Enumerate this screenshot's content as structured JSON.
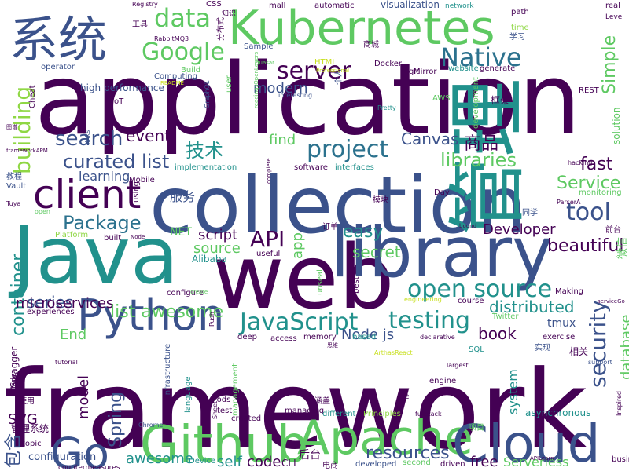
{
  "palette": {
    "dark_purple": "#440154",
    "indigo": "#3b528b",
    "teal": "#21918c",
    "green": "#5ec962",
    "yellow": "#c8e020",
    "blue": "#2c728e",
    "light_green": "#8fd744"
  },
  "words": [
    {
      "text": "framework",
      "color": "#440154"
    },
    {
      "text": "application",
      "color": "#440154"
    },
    {
      "text": "collection",
      "color": "#3b528b"
    },
    {
      "text": "web",
      "color": "#440154"
    },
    {
      "text": "Java",
      "color": "#21918c"
    },
    {
      "text": "library",
      "color": "#3b528b"
    },
    {
      "text": "系统",
      "color": "#3b528b"
    },
    {
      "text": "管理",
      "color": "#21918c"
    },
    {
      "text": "Kubernetes",
      "color": "#5ec962"
    },
    {
      "text": "Github",
      "color": "#5ec962"
    },
    {
      "text": "Apache",
      "color": "#5ec962"
    },
    {
      "text": "Cloud",
      "color": "#3b528b"
    },
    {
      "text": "Python",
      "color": "#3b528b"
    },
    {
      "text": "Go",
      "color": "#3b528b"
    },
    {
      "text": "client",
      "color": "#440154"
    },
    {
      "text": "Google",
      "color": "#5ec962"
    },
    {
      "text": "data",
      "color": "#5ec962"
    },
    {
      "text": "server",
      "color": "#440154"
    },
    {
      "text": "Native",
      "color": "#2c728e"
    },
    {
      "text": "project",
      "color": "#2c728e"
    },
    {
      "text": "open source",
      "color": "#21918c"
    },
    {
      "text": "JavaScript",
      "color": "#21918c"
    },
    {
      "text": "testing",
      "color": "#21918c"
    },
    {
      "text": "security",
      "color": "#3b528b"
    },
    {
      "text": "building",
      "color": "#8fd744"
    },
    {
      "text": "search",
      "color": "#3b528b"
    },
    {
      "text": "curated list",
      "color": "#3b528b"
    },
    {
      "text": "Package",
      "color": "#2c728e"
    },
    {
      "text": "tool",
      "color": "#3b528b"
    },
    {
      "text": "API",
      "color": "#440154"
    },
    {
      "text": "libraries",
      "color": "#5ec962"
    },
    {
      "text": "container",
      "color": "#21918c"
    },
    {
      "text": "Service",
      "color": "#5ec962"
    },
    {
      "text": "resources",
      "color": "#3b528b"
    },
    {
      "text": "list awesome",
      "color": "#5ec962"
    },
    {
      "text": "Spring",
      "color": "#3b528b"
    },
    {
      "text": "Simple",
      "color": "#5ec962"
    },
    {
      "text": "fast",
      "color": "#440154"
    },
    {
      "text": "beautiful",
      "color": "#440154"
    },
    {
      "text": "event",
      "color": "#440154"
    },
    {
      "text": "Canvas",
      "color": "#3b528b"
    },
    {
      "text": "商品",
      "color": "#440154"
    },
    {
      "text": "技术",
      "color": "#21918c"
    },
    {
      "text": "easy",
      "color": "#21918c"
    },
    {
      "text": "secret",
      "color": "#5ec962"
    },
    {
      "text": "distributed",
      "color": "#21918c"
    },
    {
      "text": "book",
      "color": "#440154"
    },
    {
      "text": "database",
      "color": "#5ec962"
    },
    {
      "text": "model",
      "color": "#440154"
    },
    {
      "text": "system",
      "color": "#21918c"
    },
    {
      "text": "series",
      "color": "#3b528b"
    },
    {
      "text": "script",
      "color": "#440154"
    },
    {
      "text": "source",
      "color": "#5ec962"
    },
    {
      "text": "find",
      "color": "#5ec962"
    },
    {
      "text": "learning",
      "color": "#3b528b"
    },
    {
      "text": "awesome",
      "color": "#21918c"
    },
    {
      "text": "self",
      "color": "#21918c"
    },
    {
      "text": "code",
      "color": "#440154"
    },
    {
      "text": "free",
      "color": "#440154"
    },
    {
      "text": "Developer",
      "color": "#440154"
    },
    {
      "text": "Node js",
      "color": "#3b528b"
    },
    {
      "text": "modern",
      "color": "#3b528b"
    },
    {
      "text": "End",
      "color": "#5ec962"
    },
    {
      "text": "SVG",
      "color": "#440154"
    },
    {
      "text": "app",
      "color": "#5ec962"
    },
    {
      "text": "tmux",
      "color": "#3b528b"
    },
    {
      "text": "Serverless",
      "color": "#5ec962"
    },
    {
      "text": "microservices",
      "color": "#440154"
    },
    {
      "text": "服务",
      "color": "#3b528b"
    },
    {
      "text": "包含",
      "color": "#3b528b"
    },
    {
      "text": "CLI",
      "color": "#440154"
    },
    {
      "text": "后台",
      "color": "#440154"
    },
    {
      "text": "微信",
      "color": "#5ec962"
    },
    {
      "text": "configuration",
      "color": "#3b528b"
    },
    {
      "text": "high performance",
      "color": "#3b528b"
    },
    {
      "text": "visualization",
      "color": "#3b528b"
    },
    {
      "text": "automatic",
      "color": "#440154"
    },
    {
      "text": "mall",
      "color": "#440154"
    },
    {
      "text": "network",
      "color": "#21918c"
    },
    {
      "text": "path",
      "color": "#440154"
    },
    {
      "text": "real",
      "color": "#440154"
    },
    {
      "text": "time",
      "color": "#8fd744"
    },
    {
      "text": "Level",
      "color": "#440154"
    },
    {
      "text": "学习",
      "color": "#3b528b"
    },
    {
      "text": "Sample",
      "color": "#3b528b"
    },
    {
      "text": "Computing",
      "color": "#3b528b"
    },
    {
      "text": "商城",
      "color": "#440154"
    },
    {
      "text": "Docker",
      "color": "#440154"
    },
    {
      "text": "Mirror",
      "color": "#440154"
    },
    {
      "text": "website",
      "color": "#21918c"
    },
    {
      "text": "generate",
      "color": "#440154"
    },
    {
      "text": "git",
      "color": "#440154"
    },
    {
      "text": "Build",
      "color": "#5ec962"
    },
    {
      "text": "operator",
      "color": "#3b528b"
    },
    {
      "text": "interesting",
      "color": "#3b528b"
    },
    {
      "text": "AWS",
      "color": "#5ec962"
    },
    {
      "text": "REST",
      "color": "#440154"
    },
    {
      "text": "框架",
      "color": "#440154"
    },
    {
      "text": "Mobile",
      "color": "#440154"
    },
    {
      "text": "implementation",
      "color": "#21918c"
    },
    {
      "text": "software",
      "color": "#440154"
    },
    {
      "text": "interfaces",
      "color": "#21918c"
    },
    {
      "text": "Vault",
      "color": "#3b528b"
    },
    {
      "text": "教程",
      "color": "#3b528b"
    },
    {
      "text": "NET",
      "color": "#5ec962"
    },
    {
      "text": "Alibaba",
      "color": "#21918c"
    },
    {
      "text": "useful",
      "color": "#440154"
    },
    {
      "text": "unseal",
      "color": "#5ec962"
    },
    {
      "text": "configure",
      "color": "#440154"
    },
    {
      "text": "experiences",
      "color": "#440154"
    },
    {
      "text": "deep",
      "color": "#440154"
    },
    {
      "text": "access",
      "color": "#440154"
    },
    {
      "text": "memory",
      "color": "#440154"
    },
    {
      "text": "based",
      "color": "#21918c"
    },
    {
      "text": "declarative",
      "color": "#440154"
    },
    {
      "text": "exercise",
      "color": "#440154"
    },
    {
      "text": "实现",
      "color": "#3b528b"
    },
    {
      "text": "course",
      "color": "#440154"
    },
    {
      "text": "Making",
      "color": "#440154"
    },
    {
      "text": "Twitter",
      "color": "#5ec962"
    },
    {
      "text": "monitoring",
      "color": "#5ec962"
    },
    {
      "text": "前台",
      "color": "#440154"
    },
    {
      "text": "同学",
      "color": "#3b528b"
    },
    {
      "text": "Platform",
      "color": "#8fd744"
    },
    {
      "text": "built",
      "color": "#440154"
    },
    {
      "text": "Swagger",
      "color": "#440154"
    },
    {
      "text": "模块",
      "color": "#440154"
    },
    {
      "text": "订单",
      "color": "#440154"
    },
    {
      "text": "hacking",
      "color": "#440154"
    },
    {
      "text": "Tuya",
      "color": "#440154"
    },
    {
      "text": "tutorial",
      "color": "#440154"
    },
    {
      "text": "使用",
      "color": "#440154"
    },
    {
      "text": "管理系统",
      "color": "#440154"
    },
    {
      "text": "topic",
      "color": "#440154"
    },
    {
      "text": "countermeasures",
      "color": "#440154"
    },
    {
      "text": "Device",
      "color": "#21918c"
    },
    {
      "text": "infrastructure",
      "color": "#3b528b"
    },
    {
      "text": "language",
      "color": "#21918c"
    },
    {
      "text": "test",
      "color": "#440154"
    },
    {
      "text": "management",
      "color": "#5ec962"
    },
    {
      "text": "managing",
      "color": "#440154"
    },
    {
      "text": "created",
      "color": "#440154"
    },
    {
      "text": "different",
      "color": "#21918c"
    },
    {
      "text": "Principles",
      "color": "#8fd744"
    },
    {
      "text": "fullstack",
      "color": "#440154"
    },
    {
      "text": "asynchronous",
      "color": "#21918c"
    },
    {
      "text": "engine",
      "color": "#440154"
    },
    {
      "text": "largest",
      "color": "#440154"
    },
    {
      "text": "SQL",
      "color": "#21918c"
    },
    {
      "text": "相关",
      "color": "#440154"
    },
    {
      "text": "support",
      "color": "#3b528b"
    },
    {
      "text": "项目",
      "color": "#5ec962"
    },
    {
      "text": "business",
      "color": "#440154"
    },
    {
      "text": "developed",
      "color": "#3b528b"
    },
    {
      "text": "second",
      "color": "#5ec962"
    },
    {
      "text": "driven",
      "color": "#440154"
    },
    {
      "text": "电商",
      "color": "#440154"
    },
    {
      "text": "Chrome",
      "color": "#3b528b"
    },
    {
      "text": "Made",
      "color": "#440154"
    },
    {
      "text": "de",
      "color": "#440154"
    },
    {
      "text": "涵盖",
      "color": "#440154"
    },
    {
      "text": "工具",
      "color": "#440154"
    },
    {
      "text": "分布式",
      "color": "#440154"
    },
    {
      "text": "Registry",
      "color": "#440154"
    },
    {
      "text": "CSS",
      "color": "#440154"
    },
    {
      "text": "HTML",
      "color": "#c8e020"
    },
    {
      "text": "user",
      "color": "#5ec962"
    },
    {
      "text": "IoT",
      "color": "#440154"
    },
    {
      "text": "Cheat",
      "color": "#440154"
    },
    {
      "text": "GraphQL",
      "color": "#3b528b"
    },
    {
      "text": "个人",
      "color": "#3b528b"
    },
    {
      "text": "Pretty",
      "color": "#21918c"
    },
    {
      "text": "development",
      "color": "#5ec962"
    },
    {
      "text": "solution",
      "color": "#5ec962"
    },
    {
      "text": "Day",
      "color": "#440154"
    },
    {
      "text": "ParserA",
      "color": "#440154"
    },
    {
      "text": "Pods",
      "color": "#440154"
    },
    {
      "text": "open",
      "color": "#5ec962"
    },
    {
      "text": "best",
      "color": "#440154"
    },
    {
      "text": "Push",
      "color": "#440154"
    },
    {
      "text": "Node",
      "color": "#440154"
    },
    {
      "text": "using",
      "color": "#440154"
    },
    {
      "text": "complete",
      "color": "#440154"
    },
    {
      "text": "bound",
      "color": "#440154"
    },
    {
      "text": "create",
      "color": "#5ec962"
    },
    {
      "text": "Sheet",
      "color": "#440154"
    },
    {
      "text": "Inspired",
      "color": "#440154"
    },
    {
      "text": "serviceGo",
      "color": "#440154"
    },
    {
      "text": "APILearn",
      "color": "#440154"
    },
    {
      "text": "engineering",
      "color": "#c8e020"
    },
    {
      "text": "思维",
      "color": "#440154"
    },
    {
      "text": "ArthasReact",
      "color": "#c8e020"
    },
    {
      "text": "RabbitMQ3",
      "color": "#440154"
    },
    {
      "text": "frameworkAPM",
      "color": "#440154"
    },
    {
      "text": "图谱",
      "color": "#440154"
    },
    {
      "text": "links",
      "color": "#3b528b"
    },
    {
      "text": "README",
      "color": "#c8e020"
    },
    {
      "text": "Professional",
      "color": "#c8e020"
    },
    {
      "text": "readingsOpenLayers",
      "color": "#5ec962"
    },
    {
      "text": "Quasar",
      "color": "#5ec962"
    },
    {
      "text": "知识",
      "color": "#440154"
    }
  ]
}
